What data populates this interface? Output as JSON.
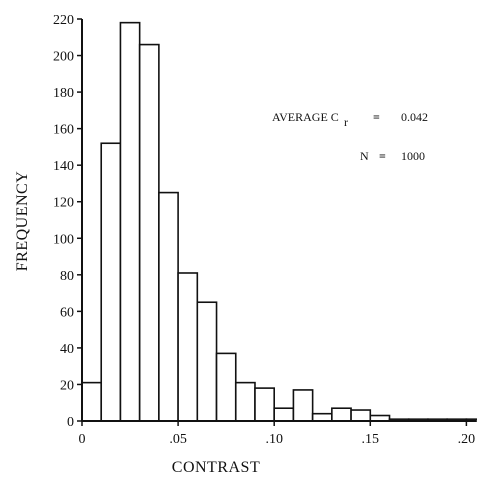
{
  "chart_data": {
    "type": "bar",
    "xlabel": "CONTRAST",
    "ylabel": "FREQUENCY",
    "xlim": [
      0,
      0.205
    ],
    "ylim": [
      0,
      220
    ],
    "bin_width": 0.01,
    "bins_start": [
      0.0,
      0.01,
      0.02,
      0.03,
      0.04,
      0.05,
      0.06,
      0.07,
      0.08,
      0.09,
      0.1,
      0.11,
      0.12,
      0.13,
      0.14,
      0.15,
      0.16,
      0.17,
      0.18,
      0.19,
      0.2
    ],
    "values": [
      21,
      152,
      218,
      206,
      125,
      81,
      65,
      37,
      21,
      18,
      7,
      17,
      4,
      7,
      6,
      3,
      1,
      1,
      1,
      1,
      1
    ],
    "x_ticks": [
      0,
      0.05,
      0.1,
      0.15,
      0.2
    ],
    "x_tick_labels": [
      "0",
      ".05",
      ".10",
      ".15",
      ".20"
    ],
    "y_ticks": [
      0,
      20,
      40,
      60,
      80,
      100,
      120,
      140,
      160,
      180,
      200,
      220
    ],
    "y_tick_labels": [
      "0",
      "20",
      "40",
      "60",
      "80",
      "100",
      "120",
      "140",
      "160",
      "180",
      "200",
      "220"
    ],
    "annotations": [
      {
        "label": "AVERAGE C",
        "subscript": "r",
        "eq": "=",
        "value": "0.042"
      },
      {
        "label": "N",
        "eq": "=",
        "value": "1000"
      }
    ],
    "grid": false,
    "bar_fill": "#ffffff",
    "bar_stroke": "#111111"
  }
}
